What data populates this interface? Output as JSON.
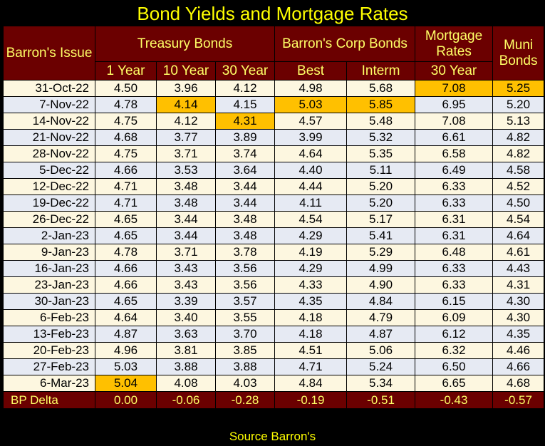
{
  "title": "Bond Yields and Mortgage Rates",
  "headers": {
    "issue": "Barron's Issue",
    "treasury": "Treasury Bonds",
    "corp": "Barron's Corp Bonds",
    "mortgage": "Mortgage Rates",
    "muni": "Muni Bonds",
    "one_year": "1 Year",
    "ten_year": "10 Year",
    "thirty_year": "30 Year",
    "best": "Best",
    "interm": "Interm",
    "mortgage_30": "30 Year"
  },
  "rows": [
    {
      "date": "31-Oct-22",
      "y1": "4.50",
      "y10": "3.96",
      "y30": "4.12",
      "best": "4.98",
      "interm": "5.68",
      "mort": "7.08",
      "muni": "5.25",
      "hl": [
        "mort",
        "muni"
      ]
    },
    {
      "date": "7-Nov-22",
      "y1": "4.78",
      "y10": "4.14",
      "y30": "4.15",
      "best": "5.03",
      "interm": "5.85",
      "mort": "6.95",
      "muni": "5.20",
      "hl": [
        "y10",
        "best",
        "interm"
      ]
    },
    {
      "date": "14-Nov-22",
      "y1": "4.75",
      "y10": "4.12",
      "y30": "4.31",
      "best": "4.57",
      "interm": "5.48",
      "mort": "7.08",
      "muni": "5.13",
      "hl": [
        "y30"
      ]
    },
    {
      "date": "21-Nov-22",
      "y1": "4.68",
      "y10": "3.77",
      "y30": "3.89",
      "best": "3.99",
      "interm": "5.32",
      "mort": "6.61",
      "muni": "4.82",
      "hl": []
    },
    {
      "date": "28-Nov-22",
      "y1": "4.75",
      "y10": "3.71",
      "y30": "3.74",
      "best": "4.64",
      "interm": "5.35",
      "mort": "6.58",
      "muni": "4.82",
      "hl": []
    },
    {
      "date": "5-Dec-22",
      "y1": "4.66",
      "y10": "3.53",
      "y30": "3.64",
      "best": "4.40",
      "interm": "5.11",
      "mort": "6.49",
      "muni": "4.58",
      "hl": []
    },
    {
      "date": "12-Dec-22",
      "y1": "4.71",
      "y10": "3.48",
      "y30": "3.44",
      "best": "4.44",
      "interm": "5.20",
      "mort": "6.33",
      "muni": "4.52",
      "hl": []
    },
    {
      "date": "19-Dec-22",
      "y1": "4.71",
      "y10": "3.48",
      "y30": "3.44",
      "best": "4.11",
      "interm": "5.20",
      "mort": "6.33",
      "muni": "4.50",
      "hl": []
    },
    {
      "date": "26-Dec-22",
      "y1": "4.65",
      "y10": "3.44",
      "y30": "3.48",
      "best": "4.54",
      "interm": "5.17",
      "mort": "6.31",
      "muni": "4.54",
      "hl": []
    },
    {
      "date": "2-Jan-23",
      "y1": "4.65",
      "y10": "3.44",
      "y30": "3.48",
      "best": "4.29",
      "interm": "5.41",
      "mort": "6.31",
      "muni": "4.64",
      "hl": []
    },
    {
      "date": "9-Jan-23",
      "y1": "4.78",
      "y10": "3.71",
      "y30": "3.78",
      "best": "4.19",
      "interm": "5.29",
      "mort": "6.48",
      "muni": "4.61",
      "hl": []
    },
    {
      "date": "16-Jan-23",
      "y1": "4.66",
      "y10": "3.43",
      "y30": "3.56",
      "best": "4.29",
      "interm": "4.99",
      "mort": "6.33",
      "muni": "4.43",
      "hl": []
    },
    {
      "date": "23-Jan-23",
      "y1": "4.66",
      "y10": "3.43",
      "y30": "3.56",
      "best": "4.33",
      "interm": "4.90",
      "mort": "6.33",
      "muni": "4.31",
      "hl": []
    },
    {
      "date": "30-Jan-23",
      "y1": "4.65",
      "y10": "3.39",
      "y30": "3.57",
      "best": "4.35",
      "interm": "4.84",
      "mort": "6.15",
      "muni": "4.30",
      "hl": []
    },
    {
      "date": "6-Feb-23",
      "y1": "4.64",
      "y10": "3.40",
      "y30": "3.55",
      "best": "4.18",
      "interm": "4.79",
      "mort": "6.09",
      "muni": "4.30",
      "hl": []
    },
    {
      "date": "13-Feb-23",
      "y1": "4.87",
      "y10": "3.63",
      "y30": "3.70",
      "best": "4.18",
      "interm": "4.87",
      "mort": "6.12",
      "muni": "4.35",
      "hl": []
    },
    {
      "date": "20-Feb-23",
      "y1": "4.96",
      "y10": "3.81",
      "y30": "3.85",
      "best": "4.51",
      "interm": "5.06",
      "mort": "6.32",
      "muni": "4.46",
      "hl": []
    },
    {
      "date": "27-Feb-23",
      "y1": "5.03",
      "y10": "3.88",
      "y30": "3.88",
      "best": "4.71",
      "interm": "5.24",
      "mort": "6.50",
      "muni": "4.66",
      "hl": []
    },
    {
      "date": "6-Mar-23",
      "y1": "5.04",
      "y10": "4.08",
      "y30": "4.03",
      "best": "4.84",
      "interm": "5.34",
      "mort": "6.65",
      "muni": "4.68",
      "hl": [
        "y1"
      ]
    }
  ],
  "delta": {
    "label": "BP Delta",
    "y1": "0.00",
    "y10": "-0.06",
    "y30": "-0.28",
    "best": "-0.19",
    "interm": "-0.51",
    "mort": "-0.43",
    "muni": "-0.57"
  },
  "source": "Source Barron's",
  "colors": {
    "header_bg": "#6b0000",
    "header_text": "#ffff66",
    "highlight": "#ffc000",
    "row_odd": "#fdf7e0",
    "row_even": "#e6eaf3"
  }
}
